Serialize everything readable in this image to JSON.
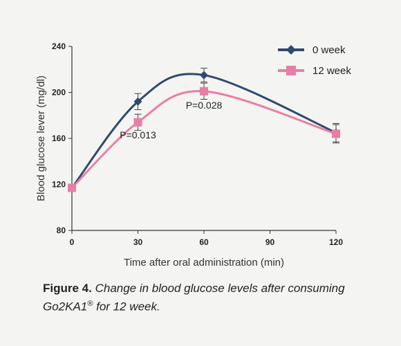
{
  "chart_data": {
    "type": "line",
    "x": [
      0,
      30,
      60,
      90,
      120
    ],
    "xticks": [
      "0",
      "30",
      "60",
      "90",
      "120"
    ],
    "yticks": [
      "80",
      "120",
      "160",
      "200",
      "240"
    ],
    "xlabel": "Time after oral administration (min)",
    "ylabel": "Blood glucose lever (mg/dl)",
    "xlim": [
      0,
      120
    ],
    "ylim": [
      80,
      240
    ],
    "grid": false,
    "legend_position": "top-right",
    "series": [
      {
        "name": "0 week",
        "color": "#2f4a6e",
        "marker": "diamond",
        "points": [
          {
            "x": 0,
            "y": 117,
            "err": 0
          },
          {
            "x": 30,
            "y": 192,
            "err": 7
          },
          {
            "x": 60,
            "y": 215,
            "err": 6
          },
          {
            "x": 120,
            "y": 165,
            "err": 8
          }
        ]
      },
      {
        "name": "12 week",
        "color": "#e87ea5",
        "marker": "square",
        "points": [
          {
            "x": 0,
            "y": 117,
            "err": 0
          },
          {
            "x": 30,
            "y": 174,
            "err": 7
          },
          {
            "x": 60,
            "y": 201,
            "err": 7
          },
          {
            "x": 120,
            "y": 164,
            "err": 8
          }
        ]
      }
    ],
    "annotations": [
      {
        "text": "P=0.013",
        "x": 30,
        "y": 160
      },
      {
        "text": "P=0.028",
        "x": 60,
        "y": 186
      }
    ]
  },
  "caption": {
    "figure_label": "Figure 4.",
    "text_main": " Change in blood glucose levels after consuming Go2KA1",
    "superscript": "®",
    "text_end": " for 12 week."
  }
}
